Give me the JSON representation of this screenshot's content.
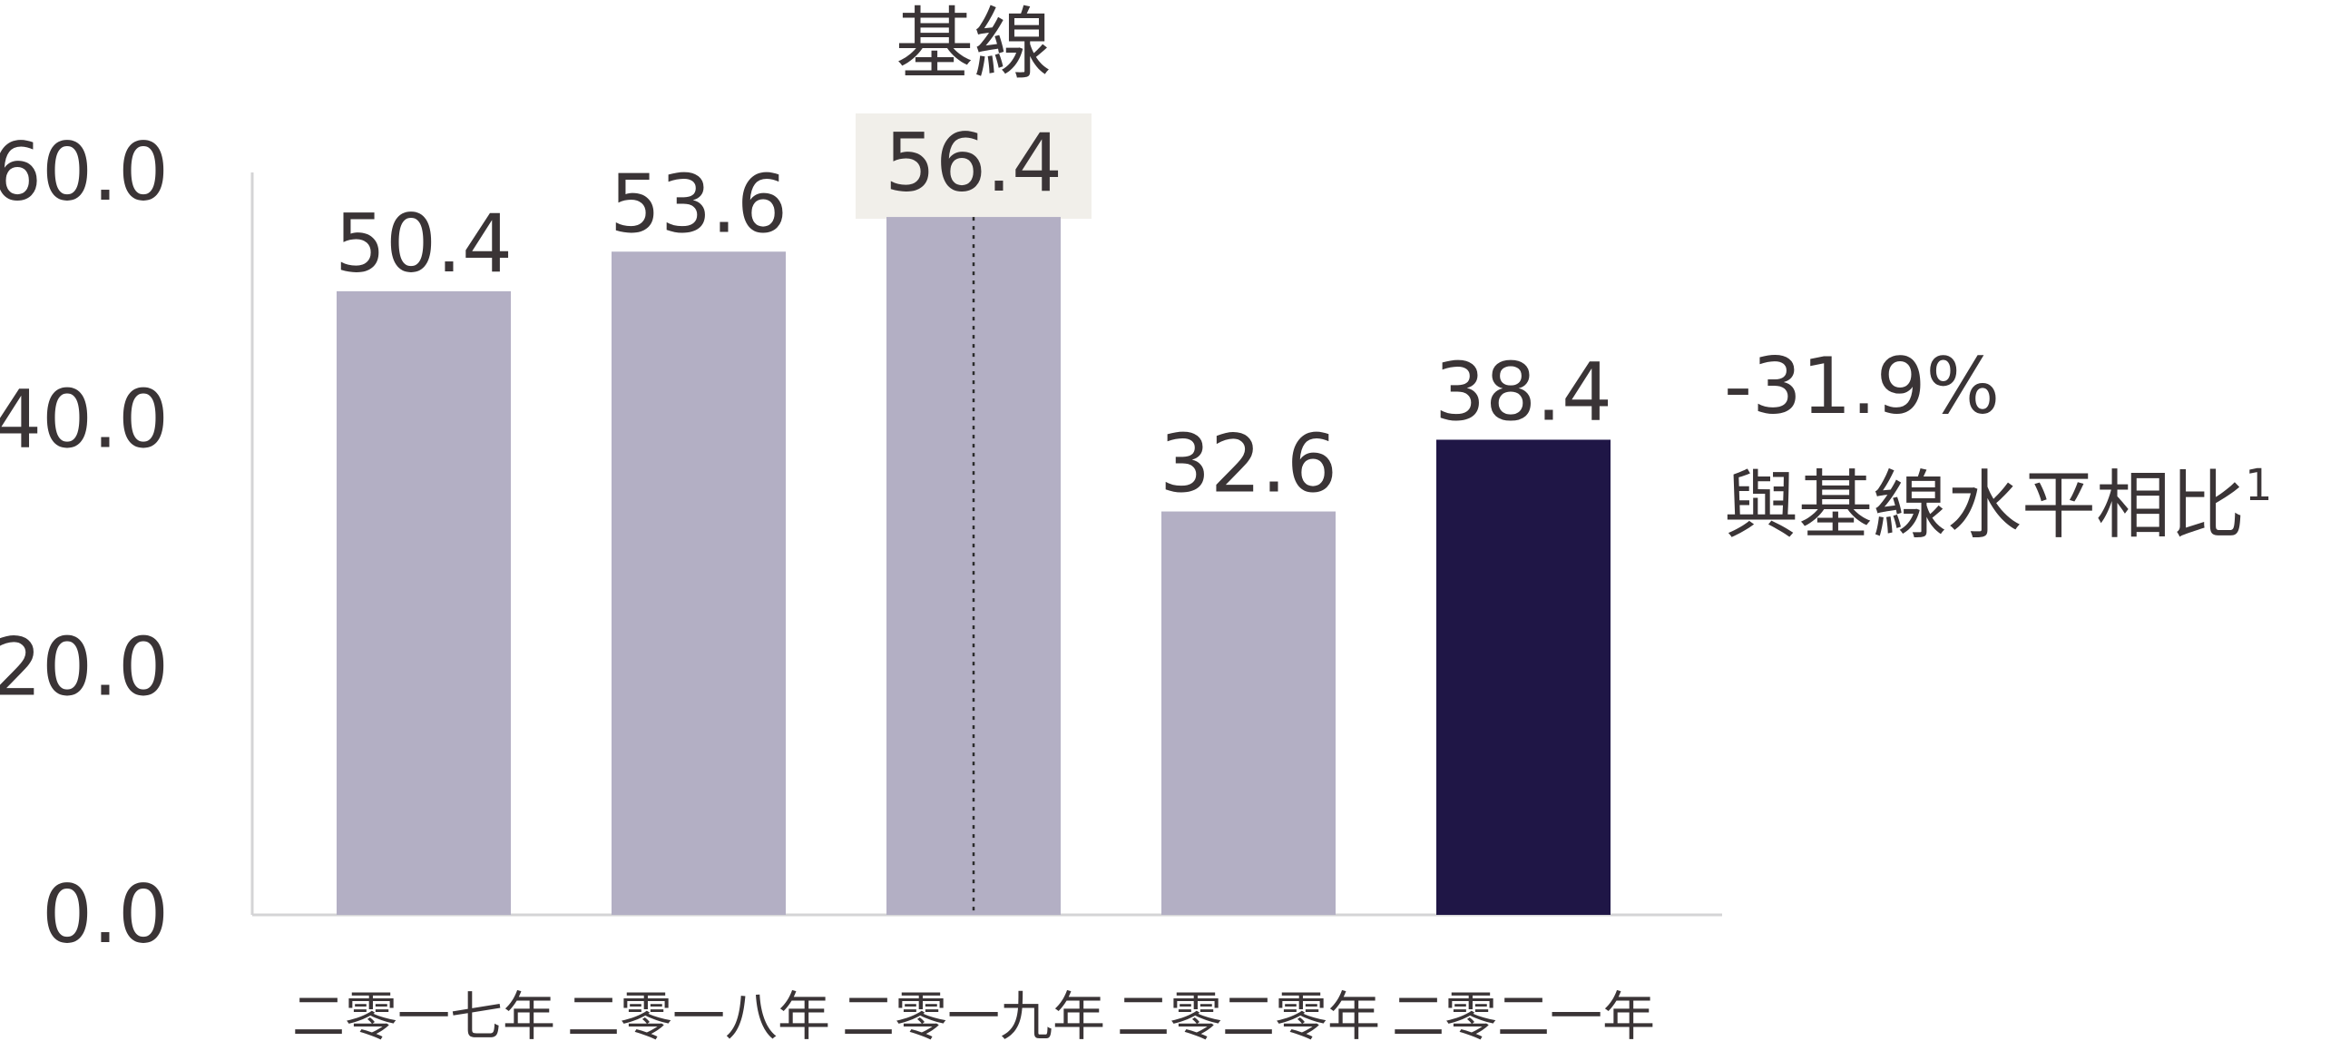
{
  "chart_data": {
    "type": "bar",
    "categories": [
      "二零一七年",
      "二零一八年",
      "二零一九年",
      "二零二零年",
      "二零二一年"
    ],
    "values": [
      50.4,
      53.6,
      56.4,
      32.6,
      38.4
    ],
    "value_labels": [
      "50.4",
      "53.6",
      "56.4",
      "32.6",
      "38.4"
    ],
    "title": "",
    "xlabel": "",
    "ylabel": "",
    "ylim": [
      0,
      60
    ],
    "yticks": [
      0,
      20,
      40,
      60
    ],
    "ytick_labels": [
      "0.0",
      "20.0",
      "40.0",
      "60.0"
    ],
    "grid": false,
    "legend": "none",
    "baseline": {
      "label": "基線",
      "category": "二零一九年"
    },
    "highlight_category": "二零二一年",
    "annotation": {
      "value": "-31.9%",
      "text": "與基線水平相比",
      "footnote": "1"
    },
    "colors": {
      "bar": "#b3afc4",
      "highlight": "#1f1646",
      "baseline_box": "#f1efea",
      "text": "#3a3436",
      "axis": "#d4d4d6"
    }
  }
}
